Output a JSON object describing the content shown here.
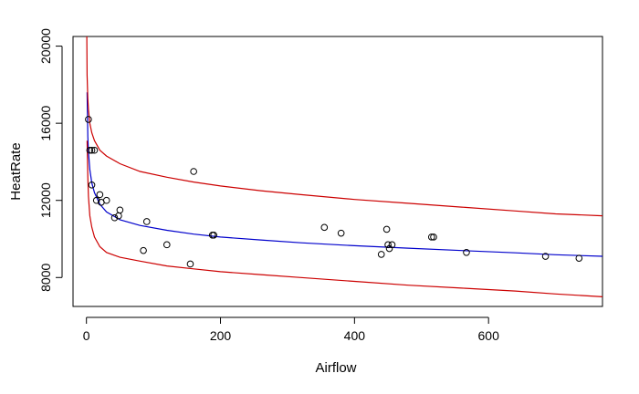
{
  "chart_data": {
    "type": "scatter",
    "title": "",
    "xlabel": "Airflow",
    "ylabel": "HeatRate",
    "xlim": [
      -20,
      770
    ],
    "ylim": [
      6500,
      20500
    ],
    "x_ticks": [
      0,
      200,
      400,
      600
    ],
    "y_ticks": [
      8000,
      12000,
      16000,
      20000
    ],
    "x_tick_labels": [
      "0",
      "200",
      "400",
      "600"
    ],
    "y_tick_labels": [
      "8000",
      "12000",
      "16000",
      "20000"
    ],
    "grid": false,
    "legend": "none",
    "points": {
      "color": "#000000",
      "x": [
        3,
        5,
        8,
        12,
        8,
        15,
        20,
        22,
        30,
        42,
        48,
        50,
        85,
        90,
        120,
        155,
        160,
        188,
        190,
        355,
        380,
        440,
        448,
        450,
        452,
        456,
        515,
        518,
        567,
        685,
        735
      ],
      "y": [
        16200,
        14600,
        14600,
        14600,
        12800,
        12000,
        12300,
        11900,
        12000,
        11100,
        11200,
        11500,
        9400,
        10900,
        9700,
        8700,
        13500,
        10200,
        10200,
        10600,
        10300,
        9200,
        10500,
        9700,
        9500,
        9700,
        10100,
        10100,
        9300,
        9100,
        9000
      ]
    },
    "series": [
      {
        "role": "fit",
        "color": "#0000cc",
        "x": [
          1,
          2,
          3,
          5,
          8,
          12,
          20,
          30,
          50,
          80,
          120,
          160,
          200,
          260,
          320,
          400,
          480,
          560,
          640,
          700,
          770
        ],
        "y": [
          17600,
          15300,
          14500,
          13600,
          12900,
          12400,
          11800,
          11400,
          11000,
          10700,
          10450,
          10250,
          10100,
          9950,
          9800,
          9650,
          9520,
          9400,
          9280,
          9180,
          9100
        ]
      },
      {
        "role": "upper-band",
        "color": "#cc0000",
        "x": [
          0.5,
          1,
          2,
          3,
          5,
          8,
          12,
          20,
          30,
          50,
          80,
          120,
          160,
          200,
          260,
          320,
          400,
          480,
          560,
          640,
          700,
          770
        ],
        "y": [
          20500,
          18500,
          17300,
          16700,
          16000,
          15500,
          15100,
          14600,
          14300,
          13900,
          13500,
          13200,
          12950,
          12750,
          12500,
          12300,
          12050,
          11850,
          11650,
          11450,
          11300,
          11200
        ]
      },
      {
        "role": "lower-band",
        "color": "#cc0000",
        "x": [
          1,
          2,
          3,
          5,
          8,
          12,
          20,
          30,
          50,
          80,
          120,
          160,
          200,
          260,
          320,
          400,
          480,
          560,
          640,
          700,
          770
        ],
        "y": [
          15100,
          13200,
          12200,
          11200,
          10600,
          10100,
          9600,
          9300,
          9050,
          8850,
          8600,
          8450,
          8300,
          8150,
          8000,
          7800,
          7600,
          7450,
          7300,
          7150,
          7000
        ]
      }
    ]
  }
}
